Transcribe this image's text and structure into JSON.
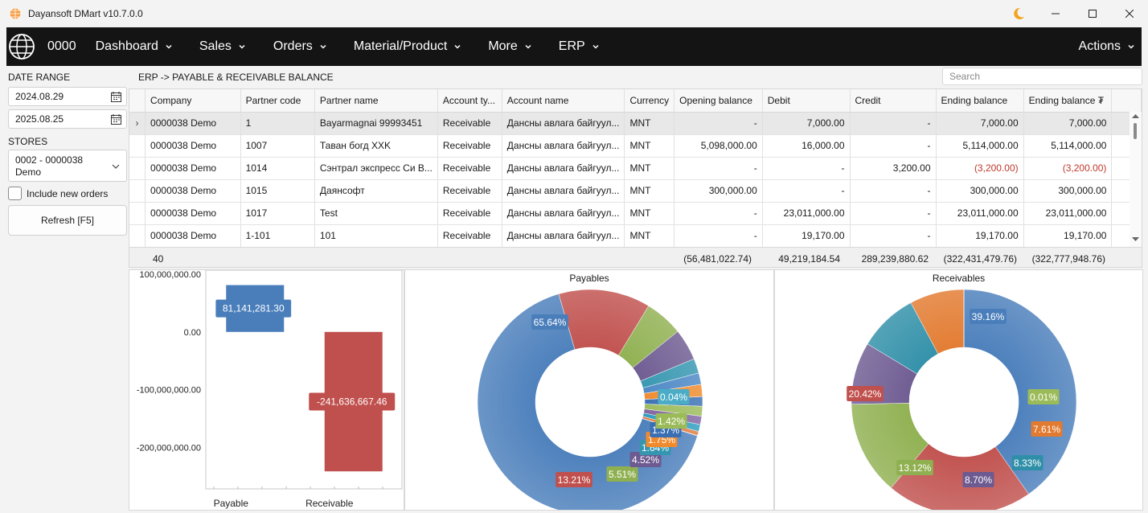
{
  "window": {
    "title": "Dayansoft DMart v10.7.0.0"
  },
  "navbar": {
    "store_code": "0000",
    "items": [
      {
        "label": "Dashboard"
      },
      {
        "label": "Sales"
      },
      {
        "label": "Orders"
      },
      {
        "label": "Material/Product"
      },
      {
        "label": "More"
      },
      {
        "label": "ERP"
      }
    ],
    "actions_label": "Actions"
  },
  "filters": {
    "date_range_label": "DATE RANGE",
    "date_from": "2024.08.29",
    "date_to": "2025.08.25",
    "stores_label": "STORES",
    "store_line1": "0002 - 0000038",
    "store_line2": "Demo",
    "include_new_orders_label": "Include new orders",
    "include_new_orders_checked": false,
    "refresh_label": "Refresh [F5]"
  },
  "breadcrumb": "ERP -> PAYABLE & RECEIVABLE BALANCE",
  "search": {
    "placeholder": "Search"
  },
  "grid": {
    "columns": [
      "Company",
      "Partner code",
      "Partner name",
      "Account ty...",
      "Account name",
      "Currency",
      "Opening balance",
      "Debit",
      "Credit",
      "Ending balance",
      "Ending balance ₮"
    ],
    "rows": [
      {
        "indicator": "›",
        "cells": [
          "0000038 Demo",
          "1",
          "Bayarmagnai 99993451",
          "Receivable",
          "Дансны авлага байгуул...",
          "MNT",
          "-",
          "7,000.00",
          "-",
          "7,000.00",
          "7,000.00"
        ]
      },
      {
        "indicator": "",
        "cells": [
          "0000038 Demo",
          "1007",
          "Таван богд XXK",
          "Receivable",
          "Дансны авлага байгуул...",
          "MNT",
          "5,098,000.00",
          "16,000.00",
          "-",
          "5,114,000.00",
          "5,114,000.00"
        ]
      },
      {
        "indicator": "",
        "cells": [
          "0000038 Demo",
          "1014",
          "Сэнтрал экспресс Си В...",
          "Receivable",
          "Дансны авлага байгуул...",
          "MNT",
          "-",
          "-",
          "3,200.00",
          "(3,200.00)",
          "(3,200.00)"
        ]
      },
      {
        "indicator": "",
        "cells": [
          "0000038 Demo",
          "1015",
          "Даянсофт",
          "Receivable",
          "Дансны авлага байгуул...",
          "MNT",
          "300,000.00",
          "-",
          "-",
          "300,000.00",
          "300,000.00"
        ]
      },
      {
        "indicator": "",
        "cells": [
          "0000038 Demo",
          "1017",
          "Test",
          "Receivable",
          "Дансны авлага байгуул...",
          "MNT",
          "-",
          "23,011,000.00",
          "-",
          "23,011,000.00",
          "23,011,000.00"
        ]
      },
      {
        "indicator": "",
        "cells": [
          "0000038 Demo",
          "1-101",
          "101",
          "Receivable",
          "Дансны авлага байгуул...",
          "MNT",
          "-",
          "19,170.00",
          "-",
          "19,170.00",
          "19,170.00"
        ]
      }
    ],
    "footer": {
      "count": "40",
      "opening_total": "(56,481,022.74)",
      "debit_total": "49,219,184.54",
      "credit_total": "289,239,880.62",
      "ending_total": "(322,431,479.76)",
      "ending_mnt_total": "(322,777,948.76)"
    }
  },
  "chart_data": [
    {
      "type": "bar",
      "title": "",
      "categories": [
        "Payable",
        "Receivable"
      ],
      "values": [
        81141281.3,
        -241636667.46
      ],
      "data_labels": [
        "81,141,281.30",
        "-241,636,667.46"
      ],
      "colors": [
        "#4a7ebb",
        "#c0504d"
      ],
      "ylim": [
        -240000000,
        100000000
      ],
      "yticks": [
        "100,000,000.00",
        "0.00",
        "-100,000,000.00",
        "-200,000,000.00"
      ],
      "grid": false
    },
    {
      "type": "pie",
      "title": "Payables",
      "labels_shown": [
        "65.64%",
        "13.21%",
        "5.51%",
        "4.52%",
        "1.64%",
        "1.75%",
        "1.37%",
        "1.42%",
        "0.04%"
      ],
      "values": [
        65.64,
        13.21,
        5.51,
        4.52,
        2.1,
        1.64,
        1.75,
        1.37,
        1.42,
        1.2,
        1.0,
        0.6,
        0.04
      ],
      "colors": [
        "#4a7ebb",
        "#c0504d",
        "#8fb050",
        "#6d5a91",
        "#3596b0",
        "#4b87c5",
        "#f08a2c",
        "#3a6fb3",
        "#9bbb59",
        "#8064a2",
        "#2c9cc0",
        "#e07b3c",
        "#4bacc6"
      ]
    },
    {
      "type": "pie",
      "title": "Receivables",
      "labels_shown": [
        "39.16%",
        "20.42%",
        "13.12%",
        "8.70%",
        "8.33%",
        "7.61%",
        "0.01%"
      ],
      "values": [
        39.16,
        20.42,
        13.12,
        8.7,
        8.33,
        7.61,
        0.01
      ],
      "colors": [
        "#4a7ebb",
        "#c0504d",
        "#8fb050",
        "#6d5a91",
        "#2f8fa8",
        "#e27a2f",
        "#9bbb59"
      ]
    }
  ]
}
